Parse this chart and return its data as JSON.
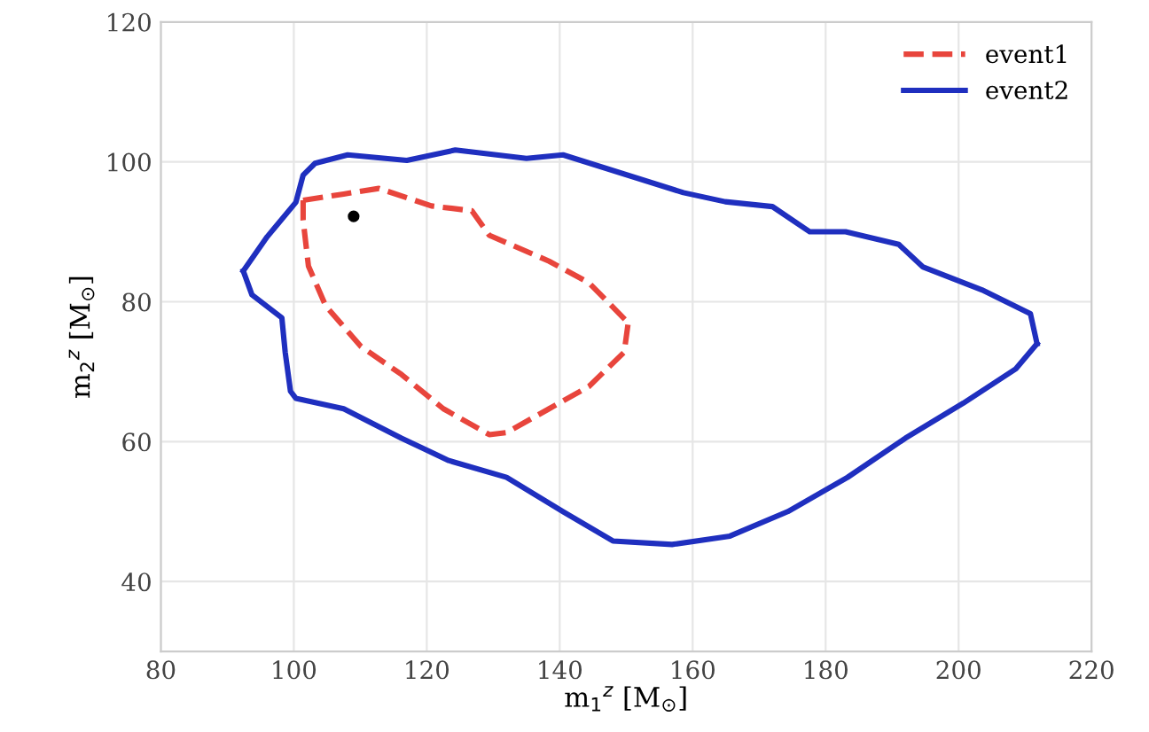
{
  "chart_data": {
    "type": "line",
    "xlabel": "m$_{1}$$^{z}$ [M$_{⊙}$]",
    "ylabel": "m$_{2}$$^{z}$ [M$_{⊙}$]",
    "xlim": [
      80,
      220
    ],
    "xticks": [
      80,
      100,
      120,
      140,
      160,
      180,
      200,
      220
    ],
    "ylim": [
      30,
      120
    ],
    "yticks": [
      40,
      60,
      80,
      100,
      120
    ],
    "grid": true,
    "legend": "top right",
    "series": [
      {
        "name": "event1",
        "line_style": "dashed",
        "color": "#e8453c",
        "x": [
          101.4,
          107.5,
          112.8,
          120.7,
          126.8,
          129.4,
          138.4,
          144.4,
          150.3
        ],
        "values": [
          94.5,
          95.4,
          96.2,
          93.7,
          93,
          89.5,
          85.8,
          82.7,
          77
        ]
      },
      {
        "line_style": "dashed",
        "color": "#e8453c",
        "x": [
          101.4,
          101.4,
          102.2,
          104.8,
          110.1,
          116.2,
          122.5,
          129.4,
          132,
          138.4,
          144.4,
          149.7,
          150.3
        ],
        "values": [
          94.5,
          91.7,
          85.1,
          79.4,
          73.6,
          69.6,
          64.7,
          61,
          61.3,
          64.7,
          67.9,
          72.8,
          77
        ]
      },
      {
        "name": "event2",
        "line_style": "solid",
        "color": "#1f2fbf",
        "x": [
          92.4,
          96,
          100.3,
          101.4,
          103.2,
          108.1,
          117,
          124.3,
          135,
          140.5,
          158.6,
          164.9,
          172,
          177.6,
          183,
          191,
          194.6,
          203.5,
          210.8,
          211.8
        ],
        "values": [
          84.4,
          89.3,
          94.2,
          98.1,
          99.8,
          101,
          100.2,
          101.7,
          100.5,
          101,
          95.6,
          94.3,
          93.6,
          90,
          90,
          88.2,
          85,
          81.7,
          78.3,
          74
        ]
      },
      {
        "line_style": "solid",
        "color": "#1f2fbf",
        "x": [
          92.4,
          93.7,
          98.2,
          98.7,
          99.5,
          100.3,
          107.5,
          116.2,
          123.3,
          132,
          140.5,
          148,
          156.9,
          165.6,
          174.3,
          183.3,
          192,
          200.7,
          208.6,
          211.8
        ],
        "values": [
          84.4,
          81,
          77.7,
          72.8,
          67.2,
          66.2,
          64.7,
          60.5,
          57.3,
          54.9,
          50,
          45.8,
          45.3,
          46.5,
          50,
          54.9,
          60.5,
          65.5,
          70.4,
          74
        ]
      },
      {
        "type": "scatter",
        "marker": "circle",
        "color": "#000000",
        "x": [
          109
        ],
        "values": [
          92.2
        ]
      }
    ]
  }
}
